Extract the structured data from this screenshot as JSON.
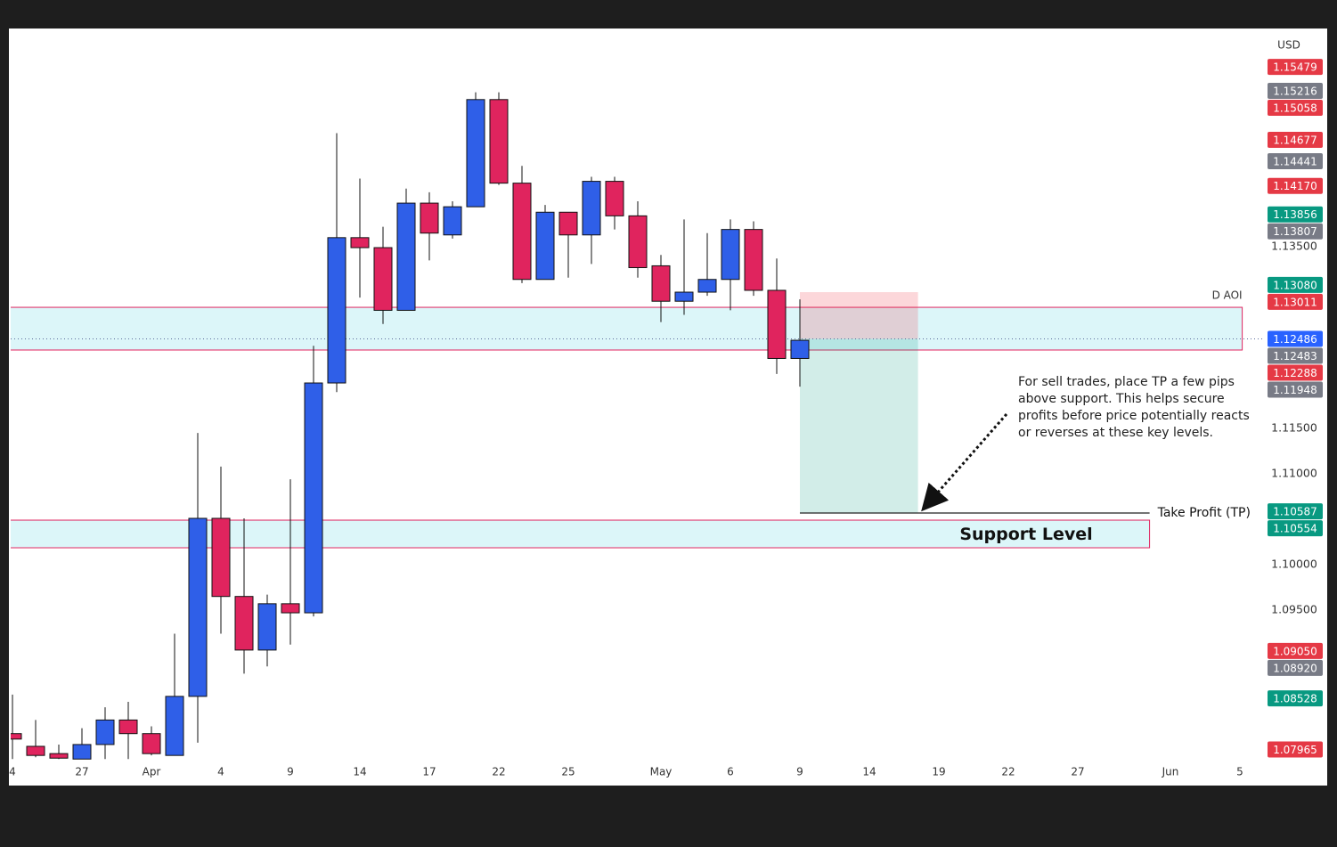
{
  "chart_data": {
    "type": "candlestick",
    "currency": "USD",
    "up_color": "#2f5fe8",
    "down_color": "#e0245e",
    "x": [
      0,
      1,
      2,
      3,
      4,
      5,
      6,
      7,
      8,
      9,
      10,
      11,
      12,
      13,
      14,
      15,
      16,
      17,
      18,
      19,
      20,
      21,
      22,
      23,
      24,
      25,
      26,
      27,
      28,
      29,
      30,
      31,
      32,
      33,
      34
    ],
    "open": [
      1.0814,
      1.08,
      1.0792,
      1.0786,
      1.0802,
      1.0829,
      1.0814,
      1.079,
      1.0855,
      1.1051,
      1.0965,
      1.0906,
      1.0957,
      1.0947,
      1.12,
      1.136,
      1.1349,
      1.128,
      1.1398,
      1.1363,
      1.1394,
      1.1512,
      1.142,
      1.1314,
      1.1388,
      1.1363,
      1.1422,
      1.1384,
      1.1329,
      1.129,
      1.13,
      1.1314,
      1.1369,
      1.1302,
      1.1227
    ],
    "high": [
      1.0857,
      1.0829,
      1.0802,
      1.082,
      1.0843,
      1.0849,
      1.0822,
      1.0924,
      1.1145,
      1.1108,
      1.1051,
      1.0967,
      1.1094,
      1.1241,
      1.1475,
      1.1425,
      1.1372,
      1.1414,
      1.141,
      1.14,
      1.152,
      1.152,
      1.1439,
      1.1396,
      1.1388,
      1.1427,
      1.1427,
      1.14,
      1.1341,
      1.138,
      1.1365,
      1.138,
      1.1378,
      1.1337,
      1.1292
    ],
    "low": [
      1.0786,
      1.0788,
      1.0786,
      1.0786,
      1.0786,
      1.0786,
      1.079,
      1.079,
      1.0804,
      1.0924,
      1.088,
      1.0888,
      1.0912,
      1.0943,
      1.119,
      1.1294,
      1.1265,
      1.128,
      1.1335,
      1.1359,
      1.1394,
      1.1418,
      1.131,
      1.1314,
      1.1316,
      1.1331,
      1.1369,
      1.1316,
      1.1267,
      1.1275,
      1.1296,
      1.128,
      1.1296,
      1.121,
      1.1196
    ],
    "close": [
      1.0808,
      1.079,
      1.0787,
      1.0802,
      1.0829,
      1.0814,
      1.0792,
      1.0855,
      1.1051,
      1.0965,
      1.0906,
      1.0957,
      1.0947,
      1.12,
      1.136,
      1.1349,
      1.128,
      1.1398,
      1.1365,
      1.1394,
      1.1512,
      1.142,
      1.1314,
      1.1388,
      1.1363,
      1.1422,
      1.1384,
      1.1327,
      1.129,
      1.13,
      1.1314,
      1.1369,
      1.1302,
      1.1227,
      1.1247
    ],
    "xlim": [
      0,
      54
    ],
    "xticks": [
      {
        "value": 0,
        "label": "4"
      },
      {
        "value": 3,
        "label": "27"
      },
      {
        "value": 6,
        "label": "Apr"
      },
      {
        "value": 9,
        "label": "4"
      },
      {
        "value": 12,
        "label": "9"
      },
      {
        "value": 15,
        "label": "14"
      },
      {
        "value": 18,
        "label": "17"
      },
      {
        "value": 21,
        "label": "22"
      },
      {
        "value": 24,
        "label": "25"
      },
      {
        "value": 28,
        "label": "May"
      },
      {
        "value": 31,
        "label": "6"
      },
      {
        "value": 34,
        "label": "9"
      },
      {
        "value": 37,
        "label": "14"
      },
      {
        "value": 40,
        "label": "19"
      },
      {
        "value": 43,
        "label": "22"
      },
      {
        "value": 46,
        "label": "27"
      },
      {
        "value": 50,
        "label": "Jun"
      },
      {
        "value": 53,
        "label": "5"
      }
    ],
    "ylim": [
      1.07588,
      1.15873
    ],
    "yticks": [
      {
        "value": 1.135,
        "label": "1.13500"
      },
      {
        "value": 1.115,
        "label": "1.11500"
      },
      {
        "value": 1.11,
        "label": "1.11000"
      },
      {
        "value": 1.1,
        "label": "1.10000"
      },
      {
        "value": 1.095,
        "label": "1.09500"
      }
    ],
    "grid": false,
    "price_tags": [
      {
        "value": 1.15479,
        "label": "1.15479",
        "color": "#e53945"
      },
      {
        "value": 1.15216,
        "label": "1.15216",
        "color": "#787b86"
      },
      {
        "value": 1.15058,
        "label": "1.15058",
        "color": "#e53945"
      },
      {
        "value": 1.14677,
        "label": "1.14677",
        "color": "#e53945"
      },
      {
        "value": 1.14441,
        "label": "1.14441",
        "color": "#787b86"
      },
      {
        "value": 1.1417,
        "label": "1.14170",
        "color": "#e53945"
      },
      {
        "value": 1.13856,
        "label": "1.13856",
        "color": "#089981"
      },
      {
        "value": 1.13807,
        "label": "1.13807",
        "color": "#787b86"
      },
      {
        "value": 1.1308,
        "label": "1.13080",
        "color": "#089981"
      },
      {
        "value": 1.13011,
        "label": "1.13011",
        "color": "#e53945"
      },
      {
        "value": 1.12486,
        "label": "1.12486",
        "color": "#2962ff"
      },
      {
        "value": 1.12483,
        "label": "1.12483",
        "color": "#787b86"
      },
      {
        "value": 1.12288,
        "label": "1.12288",
        "color": "#e53945"
      },
      {
        "value": 1.11948,
        "label": "1.11948",
        "color": "#787b86"
      },
      {
        "value": 1.10587,
        "label": "1.10587",
        "color": "#089981"
      },
      {
        "value": 1.10554,
        "label": "1.10554",
        "color": "#089981"
      },
      {
        "value": 1.0905,
        "label": "1.09050",
        "color": "#e53945"
      },
      {
        "value": 1.0892,
        "label": "1.08920",
        "color": "#787b86"
      },
      {
        "value": 1.08528,
        "label": "1.08528",
        "color": "#089981"
      },
      {
        "value": 1.07965,
        "label": "1.07965",
        "color": "#e53945"
      }
    ],
    "zones": [
      {
        "label": "D AOI",
        "from": 1.12363,
        "to": 1.12833,
        "x_from": -0.1,
        "x_to": 53.1
      },
      {
        "label": "Support Level",
        "from": 1.10186,
        "to": 1.1049,
        "x_from": -0.1,
        "x_to": 49.1
      }
    ],
    "position": {
      "entry": 1.12486,
      "stop": 1.13,
      "target": 1.10569,
      "x_from": 34,
      "x_to": 39.1,
      "line_to": 49.1,
      "target_label": "Take Profit (TP)"
    },
    "note": [
      "For sell trades, place TP a few pips",
      "above support. This helps secure",
      "profits before price potentially reacts",
      "or reverses at these key levels."
    ]
  }
}
